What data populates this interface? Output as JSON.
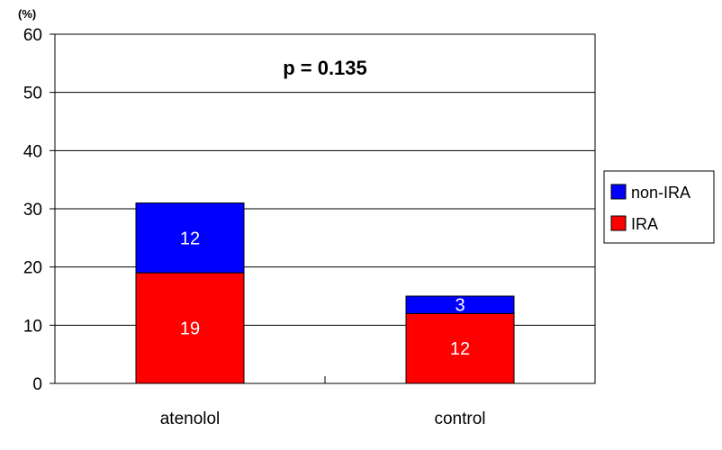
{
  "chart_data": {
    "type": "bar",
    "stacked": true,
    "categories": [
      "atenolol",
      "control"
    ],
    "series": [
      {
        "name": "IRA",
        "values": [
          19,
          12
        ],
        "color": "#ff0000"
      },
      {
        "name": "non-IRA",
        "values": [
          12,
          3
        ],
        "color": "#0000ff"
      }
    ],
    "unit": "(%)",
    "annotation": "p = 0.135",
    "ylim": [
      0,
      60
    ],
    "yticks": [
      0,
      10,
      20,
      30,
      40,
      50,
      60
    ],
    "grid": true,
    "legend_position": "right",
    "legend_order": [
      "non-IRA",
      "IRA"
    ]
  }
}
